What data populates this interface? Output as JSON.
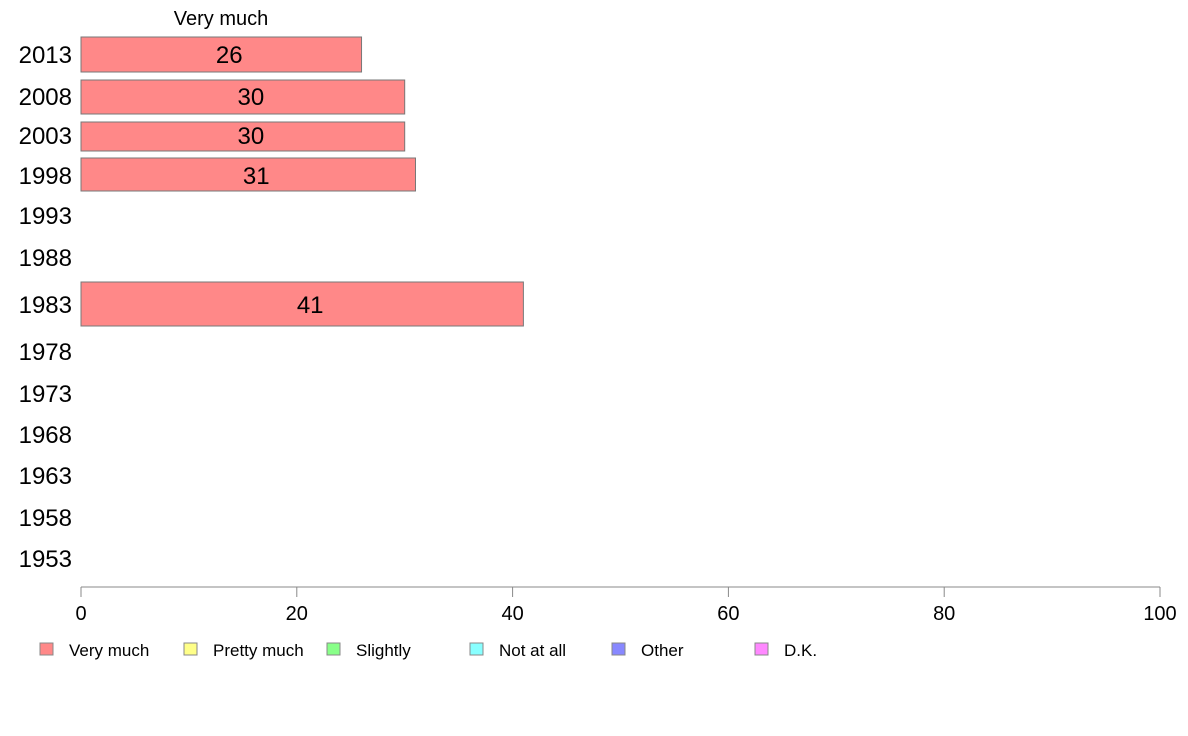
{
  "chart_data": {
    "type": "bar",
    "orientation": "horizontal",
    "stacked": true,
    "header": "Very much",
    "categories": [
      "2013",
      "2008",
      "2003",
      "1998",
      "1993",
      "1988",
      "1983",
      "1978",
      "1973",
      "1968",
      "1963",
      "1958",
      "1953"
    ],
    "series": [
      {
        "name": "Very much",
        "color": "#ff8888",
        "values": [
          26,
          30,
          30,
          31,
          null,
          null,
          41,
          null,
          null,
          null,
          null,
          null,
          null
        ],
        "labels": [
          "26",
          "30",
          "30",
          "31",
          "",
          "",
          "41",
          "",
          "",
          "",
          "",
          "",
          ""
        ]
      }
    ],
    "xlim": [
      0,
      100
    ],
    "xticks": [
      0,
      20,
      40,
      60,
      80,
      100
    ],
    "grid": false,
    "legend_position": "bottom",
    "legend": [
      {
        "label": "Very much",
        "color": "#ff8888"
      },
      {
        "label": "Pretty much",
        "color": "#ffff88"
      },
      {
        "label": "Slightly",
        "color": "#88ff88"
      },
      {
        "label": "Not at all",
        "color": "#88ffff"
      },
      {
        "label": "Other",
        "color": "#8888ff"
      },
      {
        "label": "D.K.",
        "color": "#ff88ff"
      }
    ]
  }
}
